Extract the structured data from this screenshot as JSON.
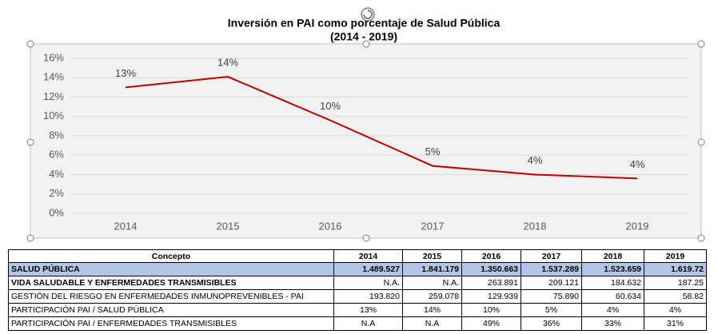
{
  "chart_data": {
    "type": "line",
    "title": "Inversión en PAI como porcentaje de Salud Pública",
    "subtitle": "(2014 - 2019)",
    "categories": [
      "2014",
      "2015",
      "2016",
      "2017",
      "2018",
      "2019"
    ],
    "series": [
      {
        "name": "PARTICIPACIÓN PAI / SALUD PÚBLICA",
        "color": "#c00000",
        "values": [
          13.0,
          14.1,
          9.6,
          4.9,
          4.0,
          3.6
        ],
        "value_labels": [
          "13%",
          "14%",
          "10%",
          "5%",
          "4%",
          "4%"
        ]
      }
    ],
    "ylim": [
      0,
      16
    ],
    "yticks": [
      {
        "value": 0,
        "label": "0%"
      },
      {
        "value": 2,
        "label": "2%"
      },
      {
        "value": 4,
        "label": "4%"
      },
      {
        "value": 6,
        "label": "6%"
      },
      {
        "value": 8,
        "label": "8%"
      },
      {
        "value": 10,
        "label": "10%"
      },
      {
        "value": 12,
        "label": "12%"
      },
      {
        "value": 14,
        "label": "14%"
      },
      {
        "value": 16,
        "label": "16%"
      }
    ],
    "grid": true
  },
  "table": {
    "header": [
      "Concepto",
      "2014",
      "2015",
      "2016",
      "2017",
      "2018",
      "2019"
    ],
    "rows": [
      [
        "SALUD PÚBLICA",
        "1.489.527",
        "1.841.179",
        "1.350.663",
        "1.537.289",
        "1.523.659",
        "1.619.72"
      ],
      [
        "VIDA SALUDABLE Y ENFERMEDADES TRANSMISIBLES",
        "N.A.",
        "N.A.",
        "263.891",
        "209.121",
        "184.632",
        "187.25"
      ],
      [
        "GESTIÓN DEL RIESGO EN ENFERMEDADES INMUNOPREVENIBLES - PAI",
        "193.820",
        "259.078",
        "129.939",
        "75.890",
        "60.634",
        "58.82"
      ],
      [
        "PARTICIPACIÓN PAI / SALUD PÚBLICA",
        "13%",
        "14%",
        "10%",
        "5%",
        "4%",
        "4%"
      ],
      [
        "PARTICIPACIÓN PAI / ENFERMEDADES TRANSMISIBLES",
        "N.A",
        "N.A",
        "49%",
        "36%",
        "33%",
        "31%"
      ]
    ]
  }
}
